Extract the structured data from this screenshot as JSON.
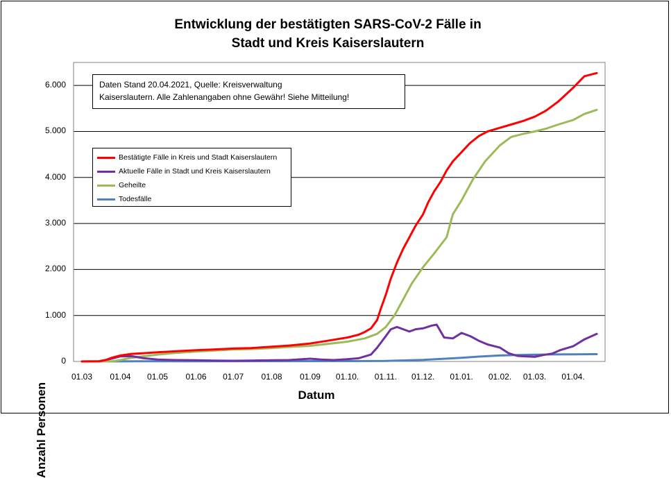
{
  "chart_data": {
    "type": "line",
    "title_line1": "Entwicklung der bestätigten SARS-CoV-2 Fälle in",
    "title_line2": "Stadt und Kreis Kaiserslautern",
    "xlabel": "Datum",
    "ylabel": "Anzahl Personen",
    "ylim": [
      0,
      6500
    ],
    "y_ticks": [
      {
        "value": 0,
        "label": "0"
      },
      {
        "value": 1000,
        "label": "1.000"
      },
      {
        "value": 2000,
        "label": "2.000"
      },
      {
        "value": 3000,
        "label": "3.000"
      },
      {
        "value": 4000,
        "label": "4.000"
      },
      {
        "value": 5000,
        "label": "5.000"
      },
      {
        "value": 6000,
        "label": "6.000"
      }
    ],
    "x_ticks": [
      {
        "date": "2020-03-01",
        "label": "01.03"
      },
      {
        "date": "2020-04-01",
        "label": "01.04"
      },
      {
        "date": "2020-05-01",
        "label": "01.05"
      },
      {
        "date": "2020-06-01",
        "label": "01.06"
      },
      {
        "date": "2020-07-01",
        "label": "01.07"
      },
      {
        "date": "2020-08-01",
        "label": "01.08"
      },
      {
        "date": "2020-09-01",
        "label": "01.09"
      },
      {
        "date": "2020-10-01",
        "label": "01.10."
      },
      {
        "date": "2020-11-01",
        "label": "01.11."
      },
      {
        "date": "2020-12-01",
        "label": "01.12."
      },
      {
        "date": "2021-01-01",
        "label": "01.01."
      },
      {
        "date": "2021-02-01",
        "label": "01.02."
      },
      {
        "date": "2021-03-01",
        "label": "01.03."
      },
      {
        "date": "2021-04-01",
        "label": "01.04."
      }
    ],
    "xlim": [
      "2020-03-01",
      "2021-04-30"
    ],
    "grid": "horizontal",
    "legend_position": "top-left",
    "note_line1": "Daten Stand 20.04.2021, Quelle: Kreisverwaltung",
    "note_line2": "Kaiserslautern. Alle Zahlenangaben ohne Gewähr! Siehe Mitteilung!",
    "series": [
      {
        "name": "Bestätigte Fälle in Kreis und Stadt Kaiserslautern",
        "color": "#ff0000",
        "points": [
          [
            "2020-03-01",
            0
          ],
          [
            "2020-03-15",
            5
          ],
          [
            "2020-03-20",
            30
          ],
          [
            "2020-03-25",
            80
          ],
          [
            "2020-04-01",
            130
          ],
          [
            "2020-04-10",
            165
          ],
          [
            "2020-04-20",
            180
          ],
          [
            "2020-05-01",
            200
          ],
          [
            "2020-05-15",
            220
          ],
          [
            "2020-06-01",
            245
          ],
          [
            "2020-06-15",
            260
          ],
          [
            "2020-07-01",
            280
          ],
          [
            "2020-07-15",
            290
          ],
          [
            "2020-08-01",
            320
          ],
          [
            "2020-08-15",
            345
          ],
          [
            "2020-09-01",
            390
          ],
          [
            "2020-09-15",
            450
          ],
          [
            "2020-10-01",
            520
          ],
          [
            "2020-10-10",
            580
          ],
          [
            "2020-10-15",
            640
          ],
          [
            "2020-10-20",
            720
          ],
          [
            "2020-10-25",
            900
          ],
          [
            "2020-10-28",
            1150
          ],
          [
            "2020-11-01",
            1450
          ],
          [
            "2020-11-05",
            1800
          ],
          [
            "2020-11-10",
            2150
          ],
          [
            "2020-11-15",
            2450
          ],
          [
            "2020-11-20",
            2700
          ],
          [
            "2020-11-25",
            2950
          ],
          [
            "2020-12-01",
            3200
          ],
          [
            "2020-12-05",
            3450
          ],
          [
            "2020-12-10",
            3700
          ],
          [
            "2020-12-15",
            3900
          ],
          [
            "2020-12-20",
            4150
          ],
          [
            "2020-12-25",
            4350
          ],
          [
            "2021-01-01",
            4550
          ],
          [
            "2021-01-08",
            4750
          ],
          [
            "2021-01-15",
            4900
          ],
          [
            "2021-01-22",
            5000
          ],
          [
            "2021-02-01",
            5080
          ],
          [
            "2021-02-10",
            5150
          ],
          [
            "2021-02-20",
            5230
          ],
          [
            "2021-03-01",
            5320
          ],
          [
            "2021-03-10",
            5450
          ],
          [
            "2021-03-20",
            5650
          ],
          [
            "2021-04-01",
            5950
          ],
          [
            "2021-04-10",
            6200
          ],
          [
            "2021-04-20",
            6270
          ]
        ]
      },
      {
        "name": "Aktuelle Fälle in Stadt und Kreis Kaiserslautern",
        "color": "#7030a0",
        "points": [
          [
            "2020-03-01",
            0
          ],
          [
            "2020-03-15",
            5
          ],
          [
            "2020-03-25",
            60
          ],
          [
            "2020-04-01",
            110
          ],
          [
            "2020-04-10",
            115
          ],
          [
            "2020-04-20",
            70
          ],
          [
            "2020-05-01",
            40
          ],
          [
            "2020-05-15",
            30
          ],
          [
            "2020-06-01",
            25
          ],
          [
            "2020-06-15",
            20
          ],
          [
            "2020-07-01",
            15
          ],
          [
            "2020-07-15",
            20
          ],
          [
            "2020-08-01",
            25
          ],
          [
            "2020-08-15",
            30
          ],
          [
            "2020-09-01",
            60
          ],
          [
            "2020-09-10",
            40
          ],
          [
            "2020-09-20",
            30
          ],
          [
            "2020-10-01",
            50
          ],
          [
            "2020-10-10",
            70
          ],
          [
            "2020-10-20",
            150
          ],
          [
            "2020-10-25",
            300
          ],
          [
            "2020-11-01",
            550
          ],
          [
            "2020-11-05",
            700
          ],
          [
            "2020-11-10",
            750
          ],
          [
            "2020-11-15",
            700
          ],
          [
            "2020-11-20",
            650
          ],
          [
            "2020-11-25",
            700
          ],
          [
            "2020-12-01",
            720
          ],
          [
            "2020-12-08",
            780
          ],
          [
            "2020-12-12",
            800
          ],
          [
            "2020-12-18",
            520
          ],
          [
            "2020-12-25",
            500
          ],
          [
            "2021-01-01",
            620
          ],
          [
            "2021-01-08",
            550
          ],
          [
            "2021-01-15",
            450
          ],
          [
            "2021-01-22",
            370
          ],
          [
            "2021-02-01",
            300
          ],
          [
            "2021-02-08",
            180
          ],
          [
            "2021-02-15",
            120
          ],
          [
            "2021-02-22",
            110
          ],
          [
            "2021-03-01",
            100
          ],
          [
            "2021-03-08",
            140
          ],
          [
            "2021-03-15",
            170
          ],
          [
            "2021-03-22",
            250
          ],
          [
            "2021-04-01",
            330
          ],
          [
            "2021-04-10",
            480
          ],
          [
            "2021-04-20",
            600
          ]
        ]
      },
      {
        "name": "Geheilte",
        "color": "#9bbb59",
        "points": [
          [
            "2020-03-01",
            0
          ],
          [
            "2020-03-25",
            0
          ],
          [
            "2020-04-01",
            30
          ],
          [
            "2020-04-10",
            80
          ],
          [
            "2020-05-01",
            150
          ],
          [
            "2020-05-15",
            185
          ],
          [
            "2020-06-01",
            215
          ],
          [
            "2020-06-15",
            235
          ],
          [
            "2020-07-01",
            260
          ],
          [
            "2020-07-15",
            270
          ],
          [
            "2020-08-01",
            290
          ],
          [
            "2020-08-15",
            315
          ],
          [
            "2020-09-01",
            340
          ],
          [
            "2020-09-15",
            380
          ],
          [
            "2020-10-01",
            430
          ],
          [
            "2020-10-15",
            500
          ],
          [
            "2020-10-25",
            600
          ],
          [
            "2020-11-01",
            750
          ],
          [
            "2020-11-08",
            1000
          ],
          [
            "2020-11-15",
            1350
          ],
          [
            "2020-11-22",
            1700
          ],
          [
            "2020-12-01",
            2050
          ],
          [
            "2020-12-10",
            2350
          ],
          [
            "2020-12-20",
            2700
          ],
          [
            "2020-12-25",
            3200
          ],
          [
            "2021-01-01",
            3500
          ],
          [
            "2021-01-10",
            3950
          ],
          [
            "2021-01-20",
            4350
          ],
          [
            "2021-02-01",
            4700
          ],
          [
            "2021-02-10",
            4880
          ],
          [
            "2021-02-20",
            4950
          ],
          [
            "2021-03-01",
            5000
          ],
          [
            "2021-03-10",
            5060
          ],
          [
            "2021-03-20",
            5150
          ],
          [
            "2021-04-01",
            5250
          ],
          [
            "2021-04-10",
            5380
          ],
          [
            "2021-04-20",
            5470
          ]
        ]
      },
      {
        "name": "Todesfälle",
        "color": "#4f81bd",
        "points": [
          [
            "2020-03-01",
            0
          ],
          [
            "2020-04-15",
            3
          ],
          [
            "2020-06-01",
            5
          ],
          [
            "2020-08-01",
            6
          ],
          [
            "2020-10-01",
            7
          ],
          [
            "2020-11-01",
            12
          ],
          [
            "2020-12-01",
            35
          ],
          [
            "2020-12-15",
            55
          ],
          [
            "2021-01-01",
            80
          ],
          [
            "2021-01-15",
            105
          ],
          [
            "2021-02-01",
            130
          ],
          [
            "2021-02-15",
            140
          ],
          [
            "2021-03-01",
            148
          ],
          [
            "2021-03-15",
            152
          ],
          [
            "2021-04-01",
            155
          ],
          [
            "2021-04-20",
            158
          ]
        ]
      }
    ]
  }
}
